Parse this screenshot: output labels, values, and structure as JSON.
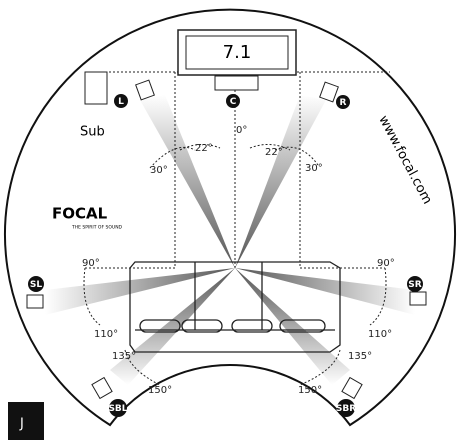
{
  "screen_label": "7.1",
  "sub_label": "Sub",
  "url": "www.focal.com",
  "brand": {
    "name": "FOCAL",
    "tagline": "THE SPIRIT OF SOUND"
  },
  "corner_label": "J",
  "speakers": [
    {
      "label": "L"
    },
    {
      "label": "C"
    },
    {
      "label": "R"
    },
    {
      "label": "SL"
    },
    {
      "label": "SR"
    },
    {
      "label": "SBL"
    },
    {
      "label": "SBR"
    }
  ],
  "angles": [
    {
      "label": "0°"
    },
    {
      "label": "22°"
    },
    {
      "label": "30°"
    },
    {
      "label": "22°"
    },
    {
      "label": "30°"
    },
    {
      "label": "90°"
    },
    {
      "label": "110°"
    },
    {
      "label": "90°"
    },
    {
      "label": "110°"
    },
    {
      "label": "135°"
    },
    {
      "label": "150°"
    },
    {
      "label": "135°"
    },
    {
      "label": "150°"
    }
  ]
}
